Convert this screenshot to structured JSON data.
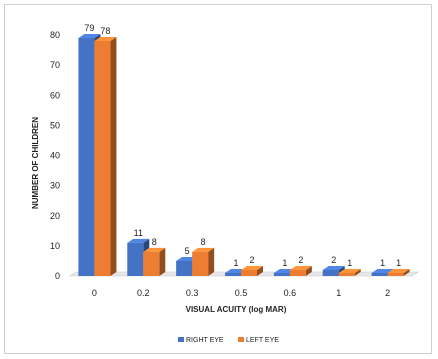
{
  "chart_data": {
    "type": "bar",
    "style": "3d-clustered-column",
    "categories": [
      "0",
      "0.2",
      "0.3",
      "0.5",
      "0.6",
      "1",
      "2"
    ],
    "series": [
      {
        "name": "RIGHT EYE",
        "values": [
          79,
          11,
          5,
          1,
          1,
          2,
          1
        ],
        "color": "#4472c4"
      },
      {
        "name": "LEFT EYE",
        "values": [
          78,
          8,
          8,
          2,
          2,
          1,
          1
        ],
        "color": "#ed7d31"
      }
    ],
    "xlabel": "VISUAL ACUITY (log MAR)",
    "ylabel": "NUMBER OF CHILDREN",
    "ylim": [
      0,
      80
    ],
    "yticks": [
      0,
      10,
      20,
      30,
      40,
      50,
      60,
      70,
      80
    ],
    "grid": false,
    "legend_position": "bottom"
  }
}
